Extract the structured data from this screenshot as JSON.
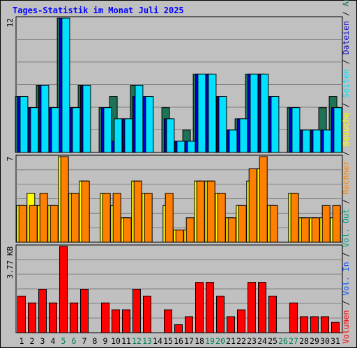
{
  "chart_data": {
    "type": "bar",
    "title": "Tages-Statistik im Monat Juli 2025",
    "days": [
      "1",
      "2",
      "3",
      "4",
      "5",
      "6",
      "7",
      "8",
      "9",
      "10",
      "11",
      "12",
      "13",
      "14",
      "15",
      "16",
      "17",
      "18",
      "19",
      "20",
      "21",
      "22",
      "23",
      "24",
      "25",
      "26",
      "27",
      "28",
      "29",
      "30",
      "31"
    ],
    "weekend_days": [
      "5",
      "6",
      "12",
      "13",
      "19",
      "20",
      "26",
      "27"
    ],
    "panels": [
      {
        "name": "requests",
        "ymax": 12,
        "ymax_label": "12",
        "series": [
          {
            "name": "Anfragen",
            "color": "#1e7356",
            "values": [
              5,
              4,
              6,
              4,
              12,
              4,
              6,
              0,
              4,
              5,
              3,
              6,
              5,
              0,
              4,
              1,
              2,
              7,
              7,
              5,
              2,
              3,
              7,
              7,
              5,
              0,
              4,
              2,
              2,
              4,
              5
            ]
          },
          {
            "name": "Dateien",
            "color": "#0000cc",
            "values": [
              5,
              4,
              6,
              4,
              12,
              4,
              6,
              0,
              4,
              1,
              3,
              5,
              5,
              0,
              3,
              1,
              1,
              7,
              7,
              5,
              2,
              3,
              7,
              7,
              5,
              0,
              4,
              2,
              2,
              2,
              4
            ]
          },
          {
            "name": "Seiten",
            "color": "#00e0ff",
            "values": [
              5,
              4,
              6,
              4,
              12,
              4,
              6,
              0,
              4,
              3,
              3,
              6,
              5,
              0,
              3,
              1,
              1,
              7,
              7,
              5,
              2,
              3,
              7,
              7,
              5,
              0,
              4,
              2,
              2,
              2,
              4
            ]
          }
        ]
      },
      {
        "name": "visits",
        "ymax": 7,
        "ymax_label": "7",
        "series": [
          {
            "name": "Besuche",
            "color": "#ffff00",
            "values": [
              3,
              4,
              3,
              3,
              7,
              4,
              5,
              0,
              4,
              3,
              2,
              5,
              4,
              0,
              3,
              1,
              1,
              5,
              5,
              4,
              2,
              3,
              5,
              6,
              3,
              0,
              4,
              2,
              2,
              2,
              2
            ]
          },
          {
            "name": "Rechner",
            "color": "#ff8000",
            "values": [
              3,
              3,
              4,
              3,
              7,
              4,
              5,
              0,
              4,
              4,
              2,
              5,
              4,
              0,
              4,
              1,
              2,
              5,
              5,
              4,
              2,
              3,
              6,
              7,
              3,
              0,
              4,
              2,
              2,
              3,
              3
            ]
          }
        ]
      },
      {
        "name": "volume",
        "ymax": 3.77,
        "ymax_label": "3.77 KB",
        "series": [
          {
            "name": "Volumen",
            "color": "#ff0000",
            "values": [
              1.6,
              1.3,
              1.9,
              1.3,
              3.77,
              1.3,
              1.9,
              0,
              1.3,
              1.0,
              1.0,
              1.9,
              1.6,
              0,
              1.0,
              0.35,
              0.7,
              2.2,
              2.2,
              1.6,
              0.7,
              1.0,
              2.2,
              2.2,
              1.6,
              0,
              1.3,
              0.7,
              0.7,
              0.7,
              0.45
            ]
          }
        ]
      }
    ],
    "right_legend": [
      {
        "text": "Volumen",
        "color": "#ff0000"
      },
      {
        "text": " / ",
        "color": "#000000"
      },
      {
        "text": "Vol. In",
        "color": "#0050ff"
      },
      {
        "text": " / ",
        "color": "#000000"
      },
      {
        "text": "Vol. Out",
        "color": "#00a080"
      },
      {
        "text": " / ",
        "color": "#000000"
      },
      {
        "text": "Rechner",
        "color": "#ff8000"
      },
      {
        "text": " / ",
        "color": "#000000"
      },
      {
        "text": "Besuche",
        "color": "#ffff00"
      },
      {
        "text": " / ",
        "color": "#000000"
      },
      {
        "text": "Seiten",
        "color": "#00e0ff"
      },
      {
        "text": " / ",
        "color": "#000000"
      },
      {
        "text": "Dateien",
        "color": "#0000cc"
      },
      {
        "text": " / ",
        "color": "#000000"
      },
      {
        "text": "Anfragen",
        "color": "#1e7356"
      }
    ],
    "colors": {
      "background": "#c0c0c0",
      "title": "#0000ff",
      "gridline": "#808080",
      "weekend_label": "#00805a",
      "weekday_label": "#000000"
    }
  }
}
